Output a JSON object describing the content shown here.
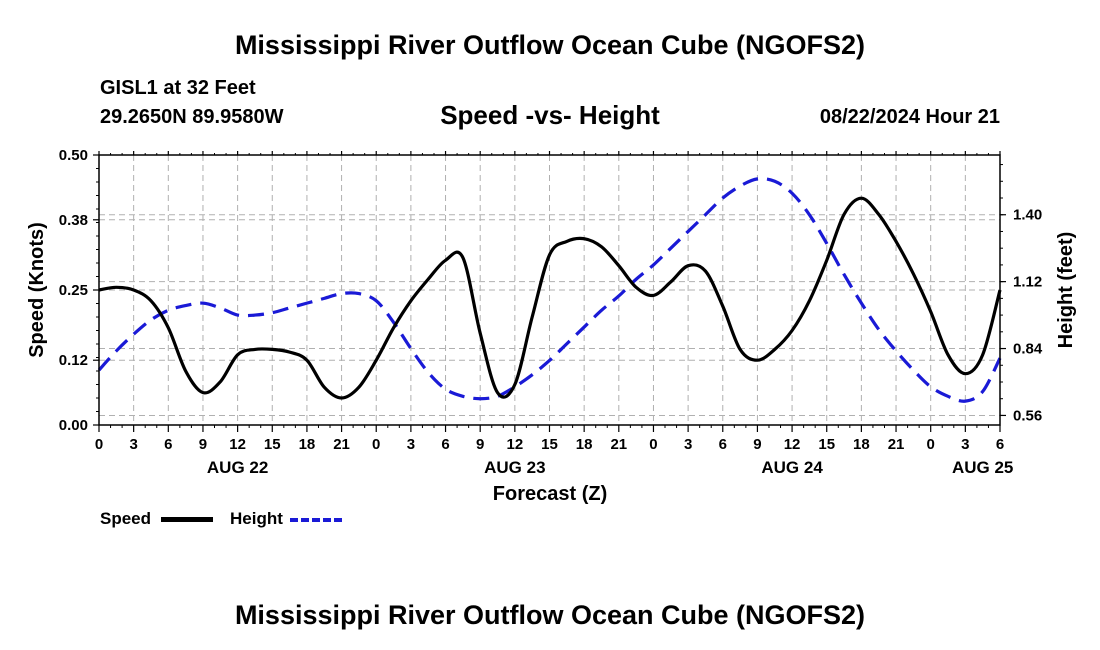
{
  "header": {
    "title": "Mississippi River Outflow Ocean Cube (NGOFS2)",
    "station": "GISL1 at 32 Feet",
    "coords": "29.2650N  89.9580W",
    "subtitle": "Speed -vs- Height",
    "datetime": "08/22/2024 Hour 21"
  },
  "legend": {
    "speed_label": "Speed",
    "height_label": "Height"
  },
  "footer": {
    "title": "Mississippi River Outflow Ocean Cube (NGOFS2)"
  },
  "colors": {
    "speed": "#000000",
    "height": "#1a1ad6",
    "grid": "#b0b0b0"
  },
  "chart_data": {
    "type": "line",
    "title": "Speed -vs- Height",
    "xlabel": "Forecast (Z)",
    "ylabel": "Speed (Knots)",
    "y2label": "Height (feet)",
    "xlim": [
      0,
      78
    ],
    "ylim": [
      0,
      0.5
    ],
    "y2lim": [
      0.52,
      1.65
    ],
    "x_ticks": [
      0,
      3,
      6,
      9,
      12,
      15,
      18,
      21,
      24,
      27,
      30,
      33,
      36,
      39,
      42,
      45,
      48,
      51,
      54,
      57,
      60,
      63,
      66,
      69,
      72,
      75,
      78
    ],
    "x_tick_labels": [
      "0",
      "3",
      "6",
      "9",
      "12",
      "15",
      "18",
      "21",
      "0",
      "3",
      "6",
      "9",
      "12",
      "15",
      "18",
      "21",
      "0",
      "3",
      "6",
      "9",
      "12",
      "15",
      "18",
      "21",
      "0",
      "3",
      "6"
    ],
    "y_ticks": [
      0,
      0.12,
      0.25,
      0.38,
      0.5
    ],
    "y_tick_labels": [
      "0.00",
      "0.12",
      "0.25",
      "0.38",
      "0.50"
    ],
    "y2_ticks": [
      0.56,
      0.84,
      1.12,
      1.4
    ],
    "y2_tick_labels": [
      "0.56",
      "0.84",
      "1.12",
      "1.40"
    ],
    "date_labels": [
      {
        "x": 12,
        "label": "AUG 22"
      },
      {
        "x": 36,
        "label": "AUG 23"
      },
      {
        "x": 60,
        "label": "AUG 24"
      },
      {
        "x": 76.5,
        "label": "AUG 25"
      }
    ],
    "series": [
      {
        "name": "Speed",
        "axis": "left",
        "x": [
          0,
          1.5,
          3,
          4.5,
          6,
          7.5,
          9,
          10.5,
          12,
          13.5,
          15,
          16.5,
          18,
          19.5,
          21,
          22.5,
          24,
          25.5,
          27,
          28.5,
          30,
          31.5,
          33,
          34.5,
          36,
          37.5,
          39,
          40.5,
          42,
          43.5,
          45,
          46.5,
          48,
          49.5,
          51,
          52.5,
          54,
          55.5,
          57,
          58.5,
          60,
          61.5,
          63,
          64.5,
          66,
          67.5,
          69,
          70.5,
          72,
          73.5,
          75,
          76.5,
          78
        ],
        "values": [
          0.25,
          0.255,
          0.25,
          0.23,
          0.18,
          0.1,
          0.06,
          0.08,
          0.13,
          0.14,
          0.14,
          0.135,
          0.12,
          0.07,
          0.05,
          0.07,
          0.12,
          0.18,
          0.23,
          0.27,
          0.305,
          0.31,
          0.17,
          0.06,
          0.075,
          0.2,
          0.315,
          0.34,
          0.345,
          0.33,
          0.295,
          0.255,
          0.24,
          0.265,
          0.295,
          0.285,
          0.22,
          0.14,
          0.12,
          0.14,
          0.175,
          0.23,
          0.305,
          0.39,
          0.42,
          0.39,
          0.34,
          0.28,
          0.21,
          0.13,
          0.095,
          0.13,
          0.25
        ]
      },
      {
        "name": "Height",
        "axis": "right",
        "x": [
          0,
          1.5,
          3,
          4.5,
          6,
          7.5,
          9,
          10.5,
          12,
          13.5,
          15,
          16.5,
          18,
          19.5,
          21,
          22.5,
          24,
          25.5,
          27,
          28.5,
          30,
          31.5,
          33,
          34.5,
          36,
          37.5,
          39,
          40.5,
          42,
          43.5,
          45,
          46.5,
          48,
          49.5,
          51,
          52.5,
          54,
          55.5,
          57,
          58.5,
          60,
          61.5,
          63,
          64.5,
          66,
          67.5,
          69,
          70.5,
          72,
          73.5,
          75,
          76.5,
          78
        ],
        "values": [
          0.75,
          0.83,
          0.9,
          0.96,
          1.0,
          1.02,
          1.03,
          1.01,
          0.98,
          0.98,
          0.99,
          1.01,
          1.03,
          1.05,
          1.07,
          1.07,
          1.04,
          0.95,
          0.84,
          0.74,
          0.67,
          0.64,
          0.63,
          0.64,
          0.68,
          0.73,
          0.79,
          0.86,
          0.93,
          1.0,
          1.06,
          1.13,
          1.19,
          1.26,
          1.33,
          1.4,
          1.47,
          1.52,
          1.55,
          1.54,
          1.49,
          1.4,
          1.28,
          1.15,
          1.03,
          0.92,
          0.83,
          0.75,
          0.68,
          0.64,
          0.62,
          0.66,
          0.8
        ]
      }
    ]
  }
}
